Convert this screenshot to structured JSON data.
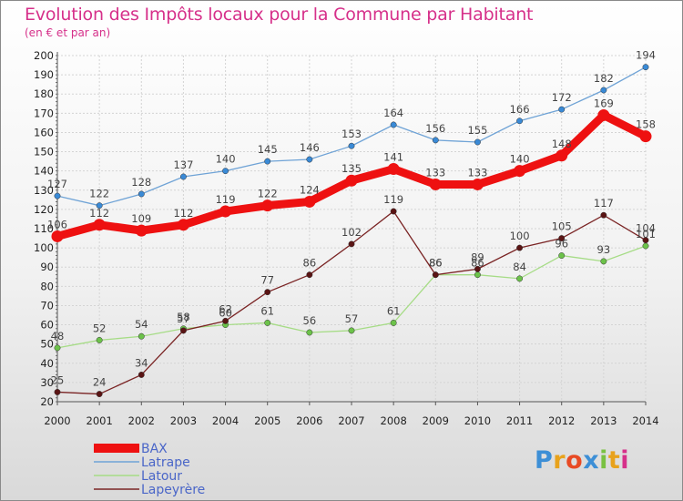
{
  "title": "Evolution des Impôts locaux pour la Commune par Habitant",
  "subtitle": "(en € et par an)",
  "logo": {
    "text": "Proxiti",
    "colors": [
      "#3d8fd6",
      "#e8a21c",
      "#e84a24",
      "#3d8fd6",
      "#7ac142",
      "#e8a21c",
      "#d6308a"
    ]
  },
  "chart_data": {
    "type": "line",
    "title": "Evolution des Impôts locaux pour la Commune par Habitant",
    "subtitle": "(en € et par an)",
    "xlabel": "",
    "ylabel": "",
    "x": [
      "2000",
      "2001",
      "2002",
      "2003",
      "2004",
      "2005",
      "2006",
      "2007",
      "2008",
      "2009",
      "2010",
      "2011",
      "2012",
      "2013",
      "2014"
    ],
    "ylim": [
      20,
      200
    ],
    "yticks": [
      20,
      30,
      40,
      50,
      60,
      70,
      80,
      90,
      100,
      110,
      120,
      130,
      140,
      150,
      160,
      170,
      180,
      190,
      200
    ],
    "grid": true,
    "legend": "bottom-left",
    "series": [
      {
        "name": "Latrape",
        "color": "#6fa3d6",
        "marker": "#3a8ad6",
        "thick": false,
        "values": [
          127,
          122,
          128,
          137,
          140,
          145,
          146,
          153,
          164,
          156,
          155,
          166,
          172,
          182,
          194
        ]
      },
      {
        "name": "Latour",
        "color": "#a6dc86",
        "marker": "#6cc24a",
        "thick": false,
        "values": [
          48,
          52,
          54,
          58,
          60,
          61,
          56,
          57,
          61,
          86,
          86,
          84,
          96,
          93,
          101
        ]
      },
      {
        "name": "Lapeyrère",
        "color": "#7a2424",
        "marker": "#5a1414",
        "thick": false,
        "values": [
          25,
          24,
          34,
          57,
          62,
          77,
          86,
          102,
          119,
          86,
          89,
          100,
          105,
          117,
          104
        ]
      },
      {
        "name": "BAX",
        "color": "#ee1111",
        "marker": "#ee1111",
        "thick": true,
        "values": [
          106,
          112,
          109,
          112,
          119,
          122,
          124,
          135,
          141,
          133,
          133,
          140,
          148,
          169,
          158
        ]
      }
    ],
    "legend_order": [
      "BAX",
      "Latrape",
      "Latour",
      "Lapeyrère"
    ]
  }
}
